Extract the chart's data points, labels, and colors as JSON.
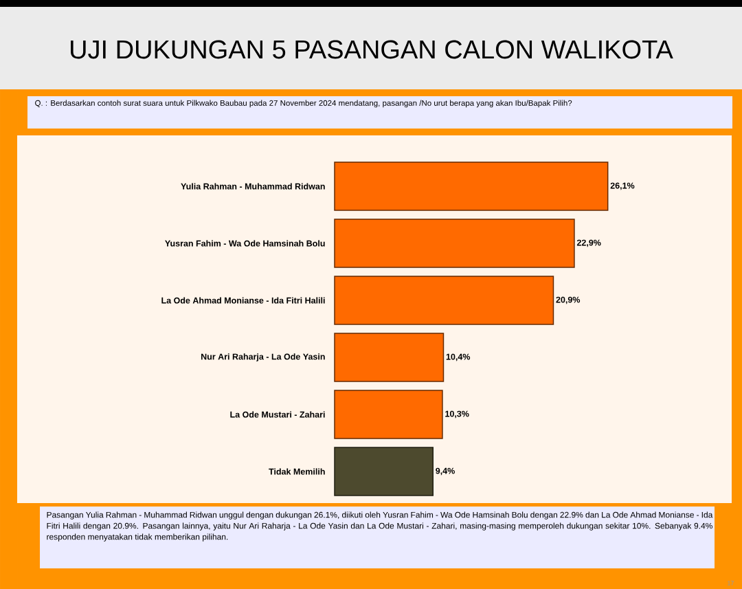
{
  "chart_data": {
    "type": "bar",
    "orientation": "horizontal",
    "title": "UJI DUKUNGAN 5 PASANGAN CALON WALIKOTA",
    "subtitle": "Q. : Berdasarkan contoh surat suara untuk Pilkwako Baubau pada 27 November 2024 mendatang, pasangan /No urut berapa yang akan Ibu/Bapak Pilih?",
    "categories": [
      "Yulia Rahman - Muhammad Ridwan",
      "Yusran Fahim  - Wa Ode Hamsinah Bolu",
      "La Ode Ahmad Monianse  - Ida Fitri Halili",
      "Nur Ari Raharja  - La Ode Yasin",
      "La Ode Mustari  - Zahari",
      "Tidak Memilih"
    ],
    "values": [
      26.1,
      22.9,
      20.9,
      10.4,
      10.3,
      9.4
    ],
    "value_labels": [
      "26,1%",
      "22,9%",
      "20,9%",
      "10,4%",
      "10,3%",
      "9,4%"
    ],
    "colors": [
      "#ff6a00",
      "#ff6a00",
      "#ff6a00",
      "#ff6a00",
      "#ff6a00",
      "#4d4a2e"
    ],
    "tick_labels": "y",
    "annotations": [
      "Pasangan Yulia Rahman - Muhammad Ridwan unggul dengan dukungan 26.1%, diikuti oleh Yusran Fahim - Wa Ode Hamsinah Bolu dengan 22.9% dan La Ode Ahmad Monianse - Ida Fitri Halili dengan 20.9%. Pasangan lainnya, yaitu Nur Ari Raharja - La Ode Yasin dan La Ode Mustari - Zahari, masing-masing memperoleh dukungan sekitar 10%. Sebanyak 9.4% responden menyatakan tidak memberikan pilihan.",
      "17"
    ]
  }
}
